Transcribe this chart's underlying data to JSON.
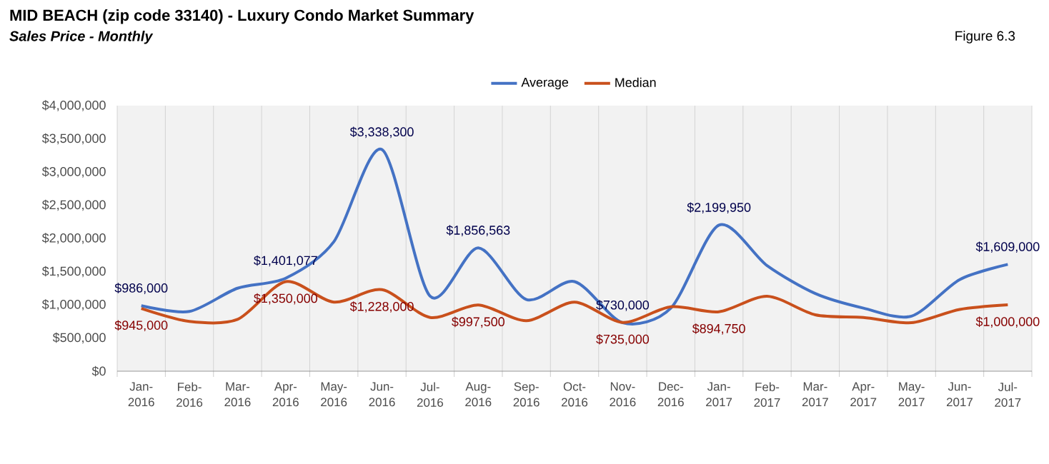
{
  "chart_data": {
    "type": "line",
    "title": "MID BEACH (zip code 33140) - Luxury Condo Market Summary",
    "subtitle": "Sales Price - Monthly",
    "annotations": [
      "Figure 6.3"
    ],
    "categories": [
      "Jan-2016",
      "Feb-2016",
      "Mar-2016",
      "Apr-2016",
      "May-2016",
      "Jun-2016",
      "Jul-2016",
      "Aug-2016",
      "Sep-2016",
      "Oct-2016",
      "Nov-2016",
      "Dec-2016",
      "Jan-2017",
      "Feb-2017",
      "Mar-2017",
      "Apr-2017",
      "May-2017",
      "Jun-2017",
      "Jul-2017"
    ],
    "series": [
      {
        "name": "Average",
        "color": "#4472c4",
        "values": [
          986000,
          900000,
          1250000,
          1401077,
          1950000,
          3338300,
          1130000,
          1856563,
          1080000,
          1350000,
          730000,
          950000,
          2199950,
          1590000,
          1170000,
          950000,
          830000,
          1380000,
          1609000
        ],
        "value_labels": [
          "$986,000",
          null,
          null,
          "$1,401,077",
          null,
          "$3,338,300",
          null,
          "$1,856,563",
          null,
          null,
          "$730,000",
          null,
          "$2,199,950",
          null,
          null,
          null,
          null,
          null,
          "$1,609,000"
        ]
      },
      {
        "name": "Median",
        "color": "#c9501c",
        "values": [
          945000,
          750000,
          780000,
          1350000,
          1040000,
          1228000,
          810000,
          997500,
          760000,
          1040000,
          735000,
          970000,
          894750,
          1130000,
          850000,
          810000,
          730000,
          930000,
          1000000
        ],
        "value_labels": [
          "$945,000",
          null,
          null,
          "$1,350,000",
          null,
          "$1,228,000",
          null,
          "$997,500",
          null,
          null,
          "$735,000",
          null,
          "$894,750",
          null,
          null,
          null,
          null,
          null,
          "$1,000,000"
        ]
      }
    ],
    "ylim": [
      0,
      4000000
    ],
    "yticks": [
      {
        "value": 0,
        "label": "$0"
      },
      {
        "value": 500000,
        "label": "$500,000"
      },
      {
        "value": 1000000,
        "label": "$1,000,000"
      },
      {
        "value": 1500000,
        "label": "$1,500,000"
      },
      {
        "value": 2000000,
        "label": "$2,000,000"
      },
      {
        "value": 2500000,
        "label": "$2,500,000"
      },
      {
        "value": 3000000,
        "label": "$3,000,000"
      },
      {
        "value": 3500000,
        "label": "$3,500,000"
      },
      {
        "value": 4000000,
        "label": "$4,000,000"
      }
    ],
    "grid": "x",
    "legend": "top",
    "marker": "none",
    "line_style": "solid"
  }
}
